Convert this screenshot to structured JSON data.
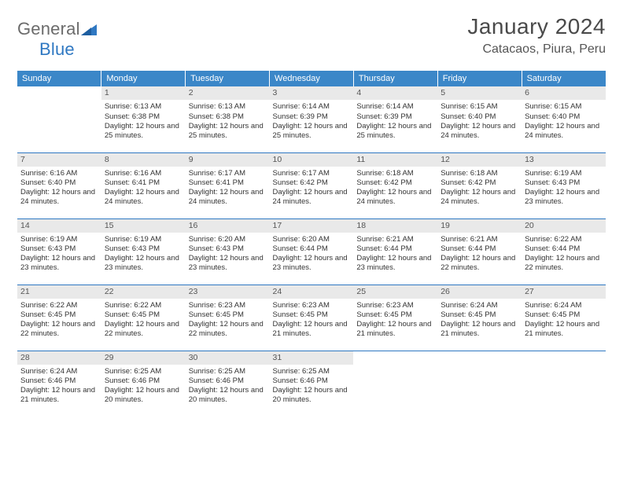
{
  "brand": {
    "part1": "General",
    "part2": "Blue"
  },
  "title": "January 2024",
  "location": "Catacaos, Piura, Peru",
  "colors": {
    "header_bg": "#3b87c8",
    "header_text": "#ffffff",
    "rule": "#2f78c2",
    "daynum_bg": "#e9e9e9",
    "text": "#333333",
    "brand_gray": "#6b6b6b",
    "brand_blue": "#2f78c2"
  },
  "day_headers": [
    "Sunday",
    "Monday",
    "Tuesday",
    "Wednesday",
    "Thursday",
    "Friday",
    "Saturday"
  ],
  "start_offset": 1,
  "days": [
    {
      "n": 1,
      "sr": "6:13 AM",
      "ss": "6:38 PM",
      "dl": "12 hours and 25 minutes."
    },
    {
      "n": 2,
      "sr": "6:13 AM",
      "ss": "6:38 PM",
      "dl": "12 hours and 25 minutes."
    },
    {
      "n": 3,
      "sr": "6:14 AM",
      "ss": "6:39 PM",
      "dl": "12 hours and 25 minutes."
    },
    {
      "n": 4,
      "sr": "6:14 AM",
      "ss": "6:39 PM",
      "dl": "12 hours and 25 minutes."
    },
    {
      "n": 5,
      "sr": "6:15 AM",
      "ss": "6:40 PM",
      "dl": "12 hours and 24 minutes."
    },
    {
      "n": 6,
      "sr": "6:15 AM",
      "ss": "6:40 PM",
      "dl": "12 hours and 24 minutes."
    },
    {
      "n": 7,
      "sr": "6:16 AM",
      "ss": "6:40 PM",
      "dl": "12 hours and 24 minutes."
    },
    {
      "n": 8,
      "sr": "6:16 AM",
      "ss": "6:41 PM",
      "dl": "12 hours and 24 minutes."
    },
    {
      "n": 9,
      "sr": "6:17 AM",
      "ss": "6:41 PM",
      "dl": "12 hours and 24 minutes."
    },
    {
      "n": 10,
      "sr": "6:17 AM",
      "ss": "6:42 PM",
      "dl": "12 hours and 24 minutes."
    },
    {
      "n": 11,
      "sr": "6:18 AM",
      "ss": "6:42 PM",
      "dl": "12 hours and 24 minutes."
    },
    {
      "n": 12,
      "sr": "6:18 AM",
      "ss": "6:42 PM",
      "dl": "12 hours and 24 minutes."
    },
    {
      "n": 13,
      "sr": "6:19 AM",
      "ss": "6:43 PM",
      "dl": "12 hours and 23 minutes."
    },
    {
      "n": 14,
      "sr": "6:19 AM",
      "ss": "6:43 PM",
      "dl": "12 hours and 23 minutes."
    },
    {
      "n": 15,
      "sr": "6:19 AM",
      "ss": "6:43 PM",
      "dl": "12 hours and 23 minutes."
    },
    {
      "n": 16,
      "sr": "6:20 AM",
      "ss": "6:43 PM",
      "dl": "12 hours and 23 minutes."
    },
    {
      "n": 17,
      "sr": "6:20 AM",
      "ss": "6:44 PM",
      "dl": "12 hours and 23 minutes."
    },
    {
      "n": 18,
      "sr": "6:21 AM",
      "ss": "6:44 PM",
      "dl": "12 hours and 23 minutes."
    },
    {
      "n": 19,
      "sr": "6:21 AM",
      "ss": "6:44 PM",
      "dl": "12 hours and 22 minutes."
    },
    {
      "n": 20,
      "sr": "6:22 AM",
      "ss": "6:44 PM",
      "dl": "12 hours and 22 minutes."
    },
    {
      "n": 21,
      "sr": "6:22 AM",
      "ss": "6:45 PM",
      "dl": "12 hours and 22 minutes."
    },
    {
      "n": 22,
      "sr": "6:22 AM",
      "ss": "6:45 PM",
      "dl": "12 hours and 22 minutes."
    },
    {
      "n": 23,
      "sr": "6:23 AM",
      "ss": "6:45 PM",
      "dl": "12 hours and 22 minutes."
    },
    {
      "n": 24,
      "sr": "6:23 AM",
      "ss": "6:45 PM",
      "dl": "12 hours and 21 minutes."
    },
    {
      "n": 25,
      "sr": "6:23 AM",
      "ss": "6:45 PM",
      "dl": "12 hours and 21 minutes."
    },
    {
      "n": 26,
      "sr": "6:24 AM",
      "ss": "6:45 PM",
      "dl": "12 hours and 21 minutes."
    },
    {
      "n": 27,
      "sr": "6:24 AM",
      "ss": "6:45 PM",
      "dl": "12 hours and 21 minutes."
    },
    {
      "n": 28,
      "sr": "6:24 AM",
      "ss": "6:46 PM",
      "dl": "12 hours and 21 minutes."
    },
    {
      "n": 29,
      "sr": "6:25 AM",
      "ss": "6:46 PM",
      "dl": "12 hours and 20 minutes."
    },
    {
      "n": 30,
      "sr": "6:25 AM",
      "ss": "6:46 PM",
      "dl": "12 hours and 20 minutes."
    },
    {
      "n": 31,
      "sr": "6:25 AM",
      "ss": "6:46 PM",
      "dl": "12 hours and 20 minutes."
    }
  ],
  "labels": {
    "sunrise": "Sunrise:",
    "sunset": "Sunset:",
    "daylight": "Daylight:"
  }
}
